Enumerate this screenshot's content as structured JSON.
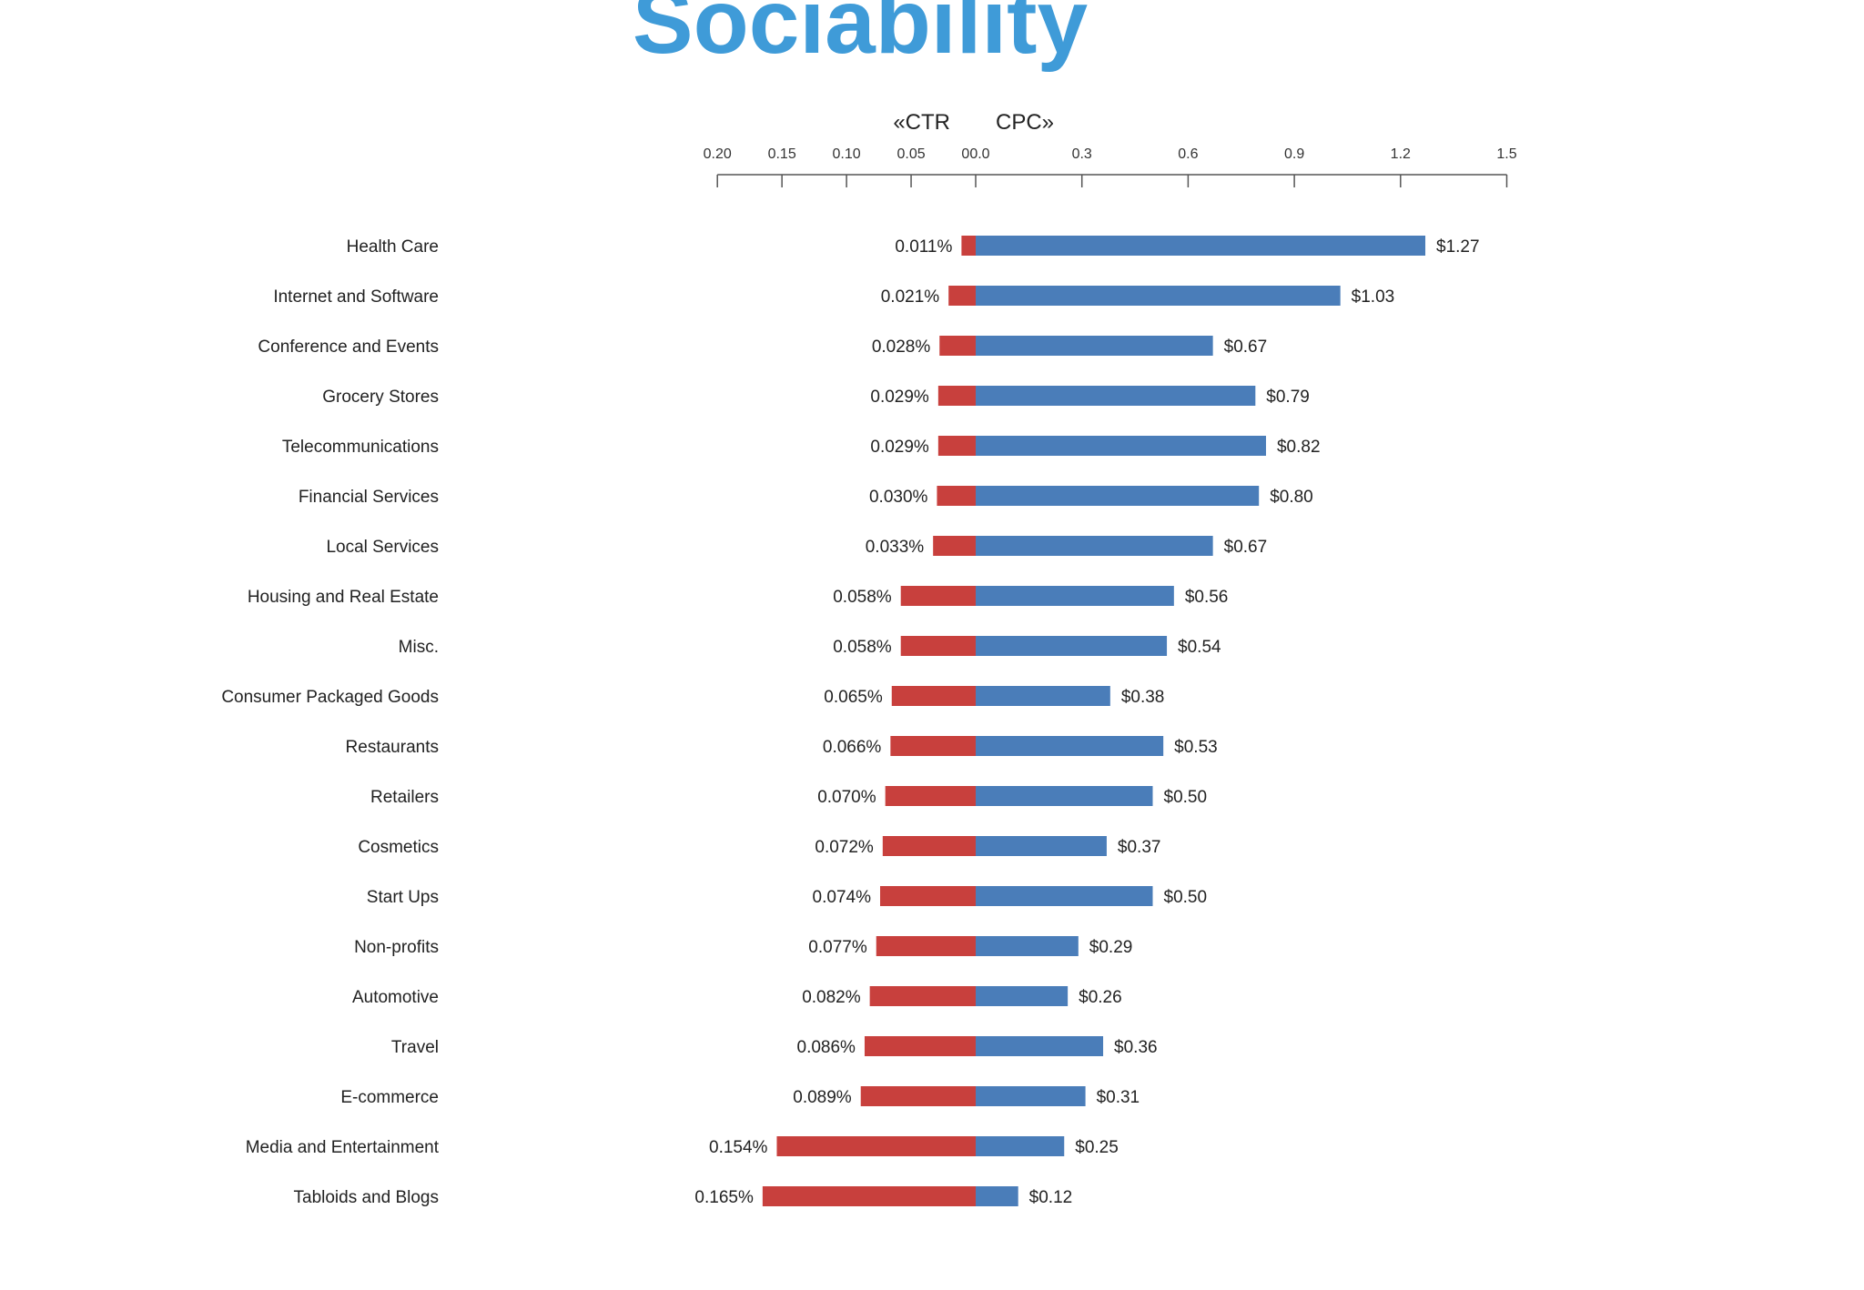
{
  "title": "Sociability",
  "chart_data": {
    "type": "bar",
    "orientation": "horizontal-diverging",
    "categories": [
      "Health Care",
      "Internet and Software",
      "Conference and Events",
      "Grocery Stores",
      "Telecommunications",
      "Financial Services",
      "Local Services",
      "Housing and Real Estate",
      "Misc.",
      "Consumer Packaged Goods",
      "Restaurants",
      "Retailers",
      "Cosmetics",
      "Start Ups",
      "Non-profits",
      "Automotive",
      "Travel",
      "E-commerce",
      "Media and Entertainment",
      "Tabloids and Blogs"
    ],
    "series": [
      {
        "name": "CTR",
        "axis_label": "«CTR",
        "color": "#c8403d",
        "values": [
          0.011,
          0.021,
          0.028,
          0.029,
          0.029,
          0.03,
          0.033,
          0.058,
          0.058,
          0.065,
          0.066,
          0.07,
          0.072,
          0.074,
          0.077,
          0.082,
          0.086,
          0.089,
          0.154,
          0.165
        ],
        "labels": [
          "0.011%",
          "0.021%",
          "0.028%",
          "0.029%",
          "0.029%",
          "0.030%",
          "0.033%",
          "0.058%",
          "0.058%",
          "0.065%",
          "0.066%",
          "0.070%",
          "0.072%",
          "0.074%",
          "0.077%",
          "0.082%",
          "0.086%",
          "0.089%",
          "0.154%",
          "0.165%"
        ],
        "ticks": [
          0.2,
          0.15,
          0.1,
          0.05
        ],
        "tick_labels": [
          "0.20",
          "0.15",
          "0.10",
          "0.05"
        ],
        "range": [
          0,
          0.2
        ]
      },
      {
        "name": "CPC",
        "axis_label": "CPC»",
        "color": "#4a7db9",
        "values": [
          1.27,
          1.03,
          0.67,
          0.79,
          0.82,
          0.8,
          0.67,
          0.56,
          0.54,
          0.38,
          0.53,
          0.5,
          0.37,
          0.5,
          0.29,
          0.26,
          0.36,
          0.31,
          0.25,
          0.12
        ],
        "labels": [
          "$1.27",
          "$1.03",
          "$0.67",
          "$0.79",
          "$0.82",
          "$0.80",
          "$0.67",
          "$0.56",
          "$0.54",
          "$0.38",
          "$0.53",
          "$0.50",
          "$0.37",
          "$0.50",
          "$0.29",
          "$0.26",
          "$0.36",
          "$0.31",
          "$0.25",
          "$0.12"
        ],
        "ticks": [
          0.3,
          0.6,
          0.9,
          1.2,
          1.5
        ],
        "tick_labels": [
          "0.3",
          "0.6",
          "0.9",
          "1.2",
          "1.5"
        ],
        "range": [
          0,
          1.5
        ]
      }
    ],
    "zero_label": "00.0",
    "grid": false,
    "legend": "none"
  }
}
